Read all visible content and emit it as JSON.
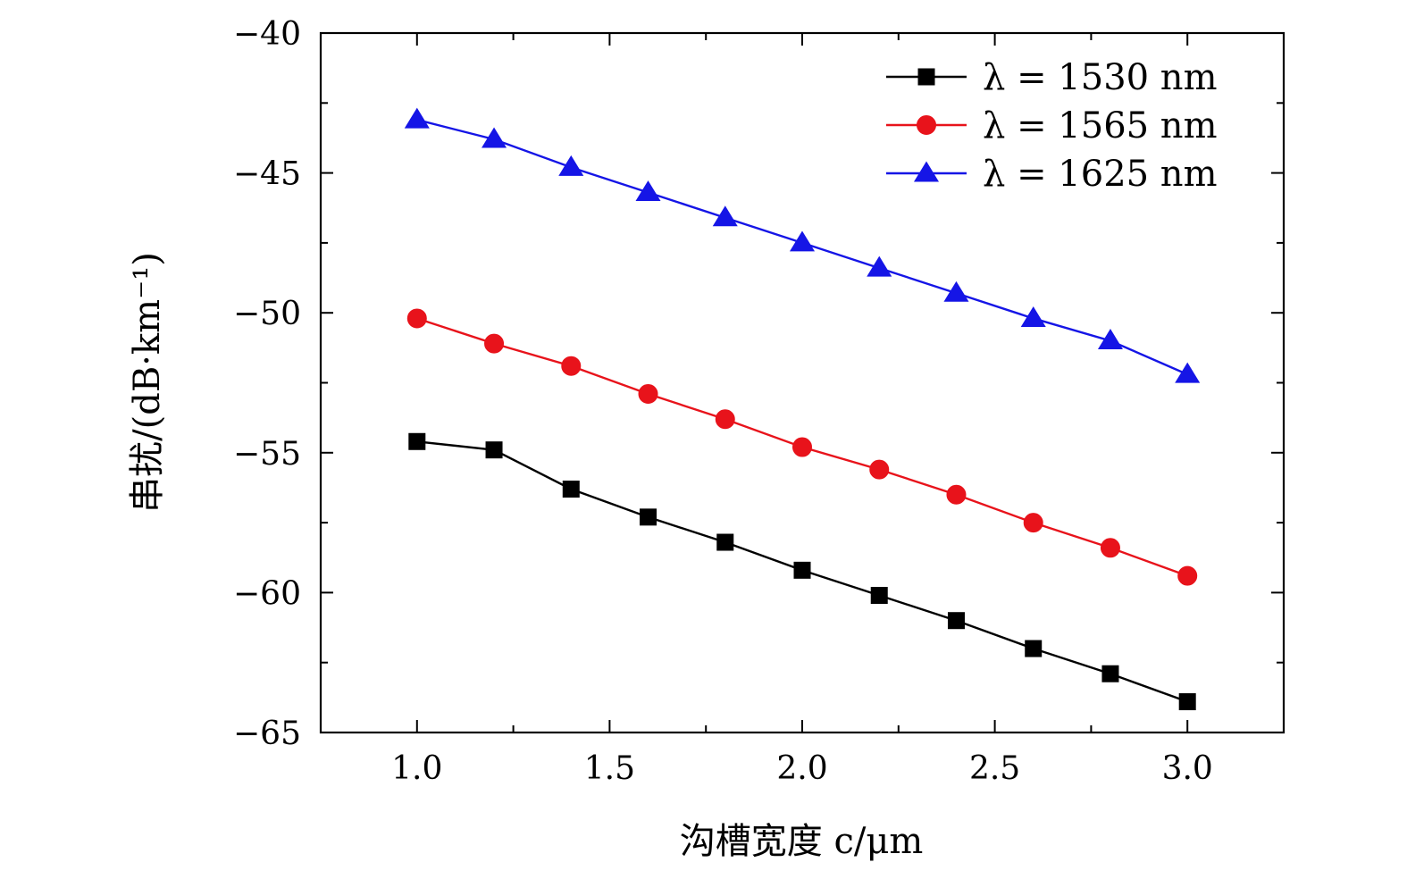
{
  "chart_data": {
    "type": "line",
    "title": "",
    "xlabel": "沟槽宽度 c/μm",
    "ylabel": "串扰/(dB·km⁻¹)",
    "xlim": [
      0.75,
      3.25
    ],
    "ylim": [
      -65,
      -40
    ],
    "xticks": [
      1.0,
      1.5,
      2.0,
      2.5,
      3.0
    ],
    "xtick_labels": [
      "1.0",
      "1.5",
      "2.0",
      "2.5",
      "3.0"
    ],
    "yticks": [
      -40,
      -45,
      -50,
      -55,
      -60,
      -65
    ],
    "ytick_labels": [
      "−40",
      "−45",
      "−50",
      "−55",
      "−60",
      "−65"
    ],
    "grid": false,
    "legend_position": "top-right",
    "x": [
      1.0,
      1.2,
      1.4,
      1.6,
      1.8,
      2.0,
      2.2,
      2.4,
      2.6,
      2.8,
      3.0
    ],
    "series": [
      {
        "name": "λ = 1530 nm",
        "color": "#000000",
        "marker": "square",
        "values": [
          -54.6,
          -54.9,
          -56.3,
          -57.3,
          -58.2,
          -59.2,
          -60.1,
          -61.0,
          -62.0,
          -62.9,
          -63.9
        ]
      },
      {
        "name": "λ = 1565 nm",
        "color": "#e8131b",
        "marker": "circle",
        "values": [
          -50.2,
          -51.1,
          -51.9,
          -52.9,
          -53.8,
          -54.8,
          -55.6,
          -56.5,
          -57.5,
          -58.4,
          -59.4
        ]
      },
      {
        "name": "λ = 1625 nm",
        "color": "#1515e6",
        "marker": "triangle",
        "values": [
          -43.1,
          -43.8,
          -44.8,
          -45.7,
          -46.6,
          -47.5,
          -48.4,
          -49.3,
          -50.2,
          -51.0,
          -52.2
        ]
      }
    ]
  }
}
